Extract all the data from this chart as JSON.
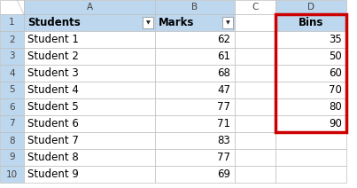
{
  "col_A_header": "Students",
  "col_B_header": "Marks",
  "col_D_header": "Bins",
  "students": [
    "Student 1",
    "Student 2",
    "Student 3",
    "Student 4",
    "Student 5",
    "Student 6",
    "Student 7",
    "Student 8",
    "Student 9"
  ],
  "marks": [
    62,
    61,
    68,
    47,
    77,
    71,
    83,
    77,
    69
  ],
  "bins": [
    35,
    50,
    60,
    70,
    80,
    90
  ],
  "col_labels": [
    "A",
    "B",
    "C",
    "D"
  ],
  "header_bg": "#BDD7EE",
  "grid_color": "#BFBFBF",
  "highlight_border": "#CC0000",
  "background_color": "#FFFFFF",
  "font_size": 8.5,
  "col_letter_font_size": 7.5,
  "row_num_font_size": 7.5
}
